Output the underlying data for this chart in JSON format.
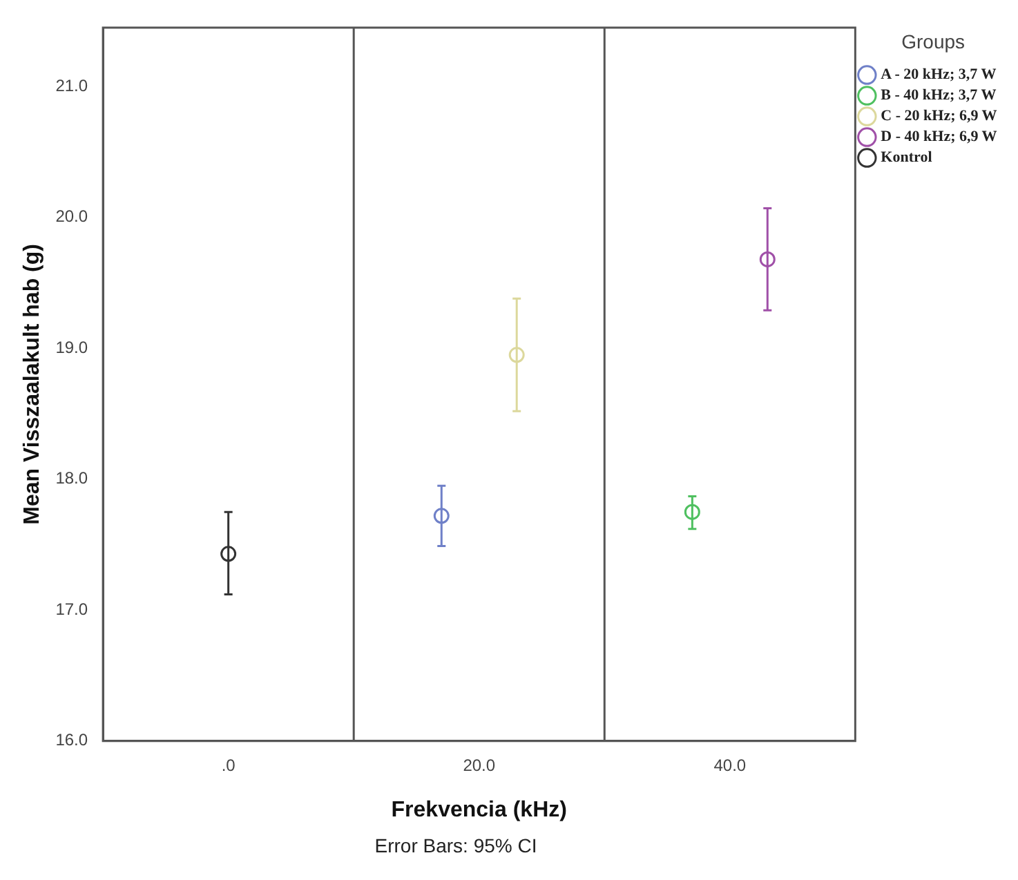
{
  "chart_data": {
    "type": "scatter",
    "xlabel": "Frekvencia (kHz)",
    "ylabel": "Mean Visszaalakult hab (g)",
    "legend_title": "Groups",
    "categories": [
      ".0",
      "20.0",
      "40.0"
    ],
    "series": [
      {
        "name": "A - 20 kHz; 3,7 W",
        "color": "#6f80c8",
        "values": [
          null,
          17.72,
          null
        ],
        "errors": [
          null,
          [
            17.49,
            17.95
          ],
          null
        ]
      },
      {
        "name": "B - 40 kHz; 3,7 W",
        "color": "#4fc060",
        "values": [
          null,
          null,
          17.75
        ],
        "errors": [
          null,
          null,
          [
            17.62,
            17.87
          ]
        ]
      },
      {
        "name": "C - 20 kHz; 6,9 W",
        "color": "#dcd89c",
        "values": [
          null,
          18.95,
          null
        ],
        "errors": [
          null,
          [
            18.52,
            19.38
          ],
          null
        ]
      },
      {
        "name": "D - 40 kHz; 6,9 W",
        "color": "#a050a8",
        "values": [
          null,
          null,
          19.68
        ],
        "errors": [
          null,
          null,
          [
            19.29,
            20.07
          ]
        ]
      },
      {
        "name": "Kontrol",
        "color": "#333333",
        "values": [
          17.43,
          null,
          null
        ],
        "errors": [
          [
            17.12,
            17.75
          ],
          null,
          null
        ]
      }
    ],
    "ylim": [
      16,
      21.45
    ],
    "yticks": [
      {
        "value": 16,
        "label": "16.0"
      },
      {
        "value": 17,
        "label": "17.0"
      },
      {
        "value": 18,
        "label": "18.0"
      },
      {
        "value": 19,
        "label": "19.0"
      },
      {
        "value": 20,
        "label": "20.0"
      },
      {
        "value": 21,
        "label": "21.0"
      }
    ],
    "grid": false,
    "legend": "right",
    "marker": "circle",
    "annotations": [
      "Error Bars: 95% CI"
    ]
  }
}
